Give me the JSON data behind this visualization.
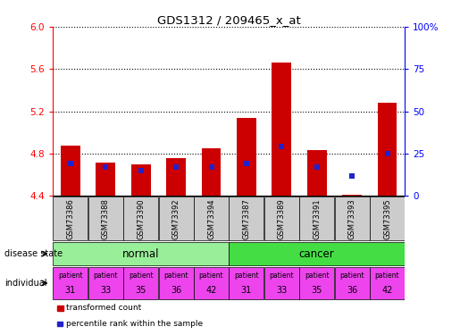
{
  "title": "GDS1312 / 209465_x_at",
  "samples": [
    "GSM73386",
    "GSM73388",
    "GSM73390",
    "GSM73392",
    "GSM73394",
    "GSM73387",
    "GSM73389",
    "GSM73391",
    "GSM73393",
    "GSM73395"
  ],
  "transformed_count": [
    4.88,
    4.72,
    4.7,
    4.76,
    4.85,
    5.14,
    5.66,
    4.83,
    4.41,
    5.28
  ],
  "percentile_rank": [
    19,
    17,
    15,
    17,
    17,
    19,
    29,
    17,
    12,
    25
  ],
  "ymin": 4.4,
  "ymax": 6.0,
  "yticks": [
    4.4,
    4.8,
    5.2,
    5.6,
    6.0
  ],
  "right_yticks": [
    0,
    25,
    50,
    75,
    100
  ],
  "right_ylabels": [
    "0",
    "25",
    "50",
    "75",
    "100%"
  ],
  "bar_color": "#cc0000",
  "dot_color": "#2222cc",
  "normal_color": "#99ee99",
  "cancer_color": "#44dd44",
  "individual_color": "#ee44ee",
  "sample_bg_color": "#cccccc",
  "bar_width": 0.55,
  "patient_nums": [
    31,
    33,
    35,
    36,
    42,
    31,
    33,
    35,
    36,
    42
  ]
}
